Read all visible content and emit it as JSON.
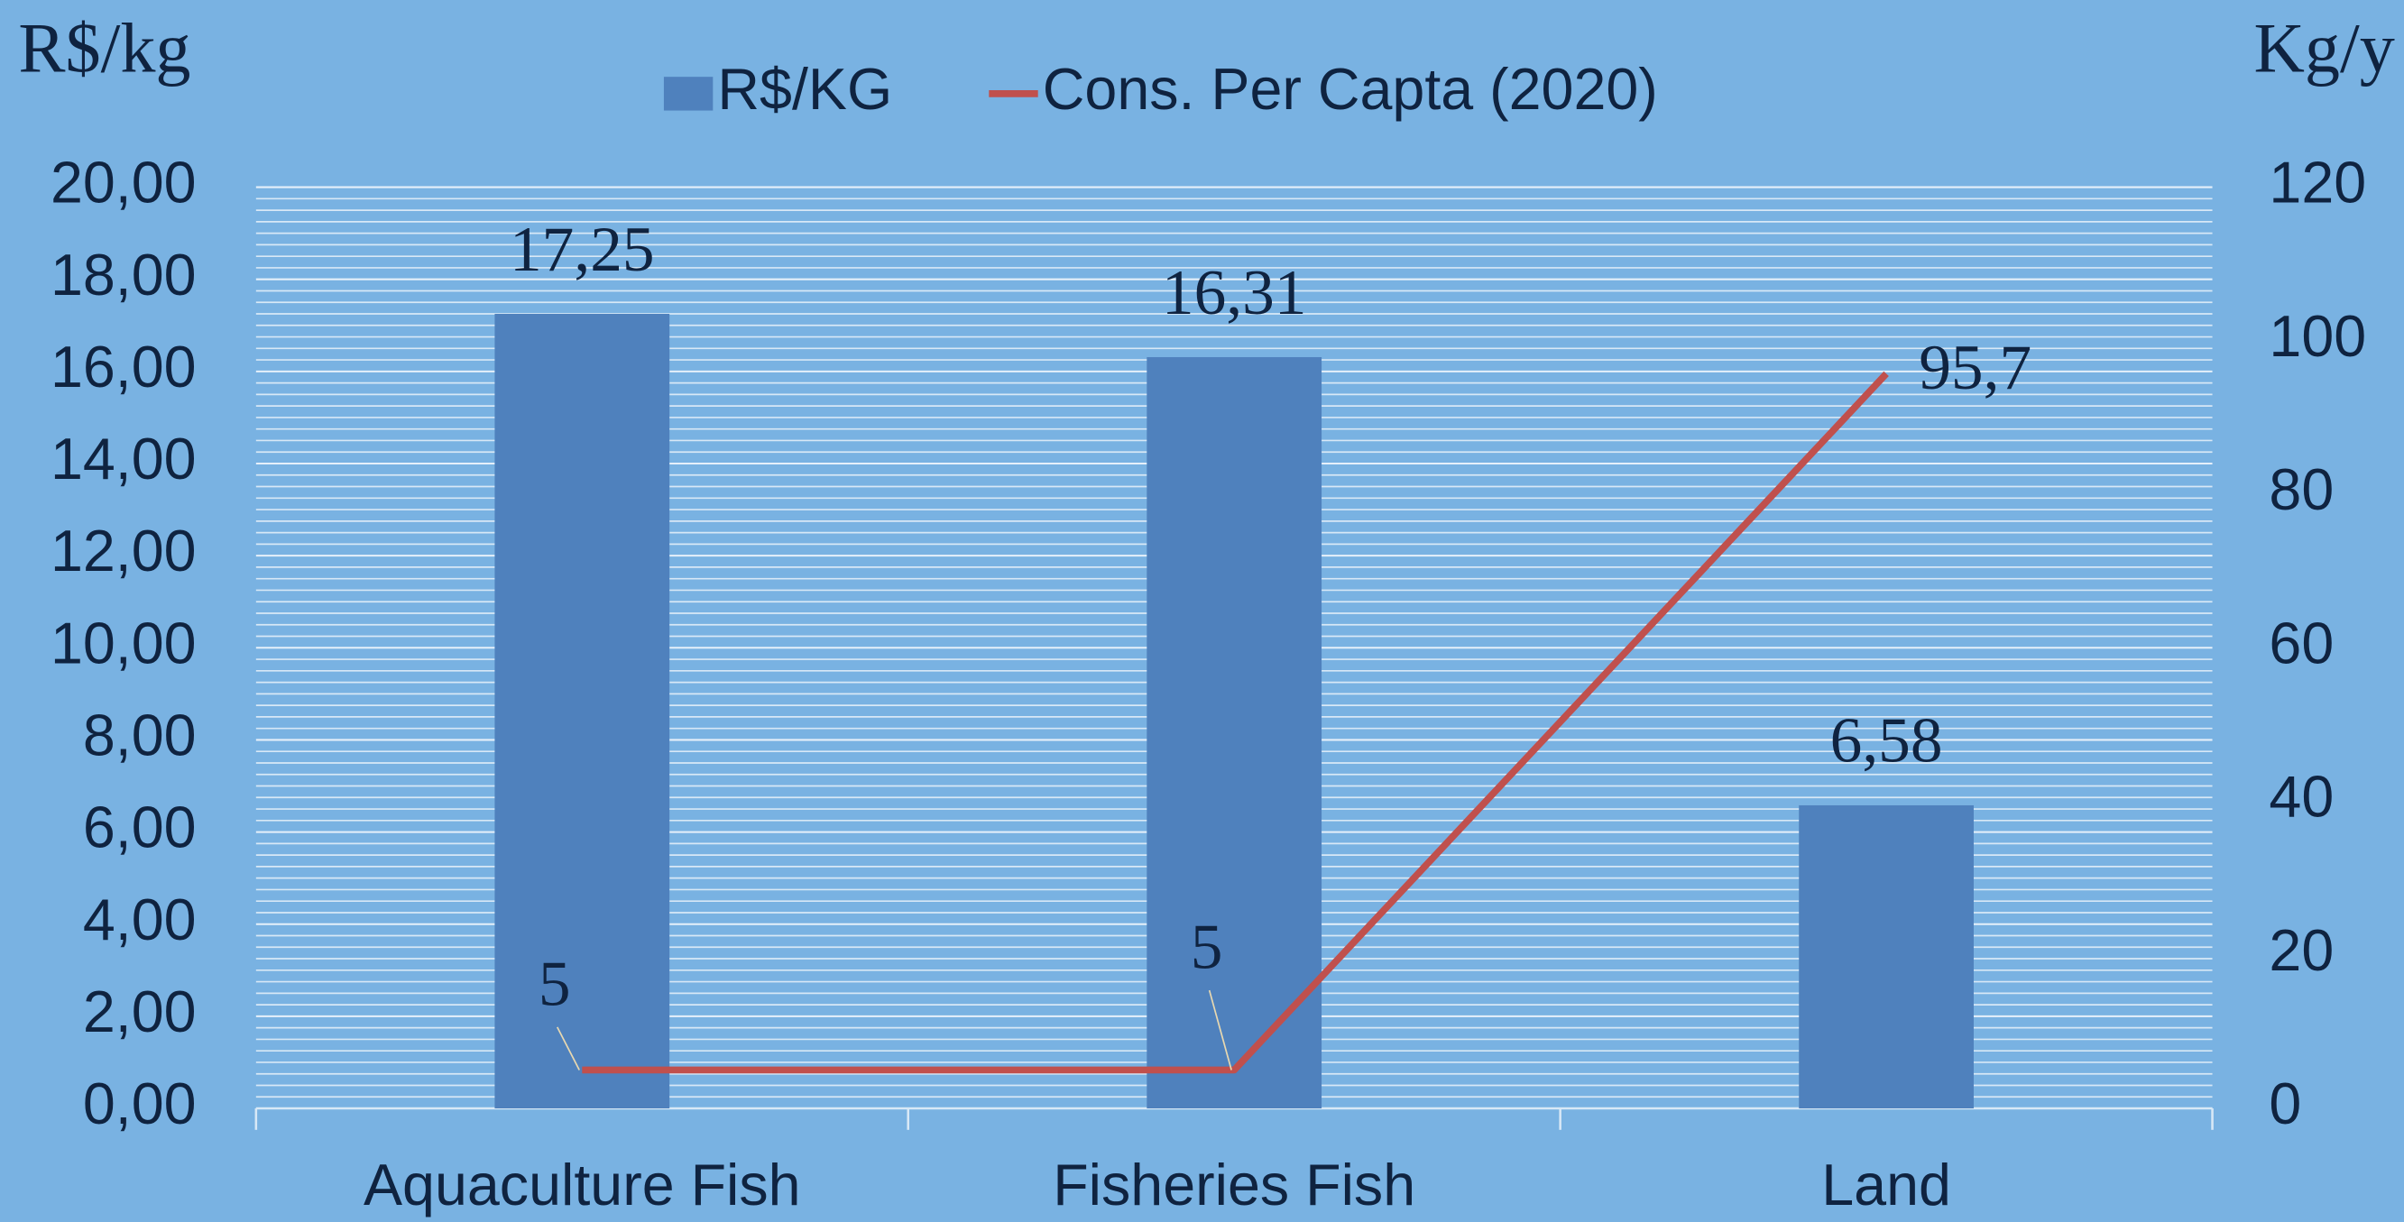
{
  "chart_data": {
    "type": "bar",
    "y_title": "R$/kg",
    "y2_title": "Kg/y",
    "categories": [
      "Aquaculture Fish",
      "Fisheries Fish",
      "Land"
    ],
    "series": [
      {
        "name": "R$/KG",
        "color": "#4f81bd",
        "values": [
          17.25,
          16.31,
          6.58
        ],
        "value_labels": [
          "17,25",
          "16,31",
          "6,58"
        ]
      },
      {
        "name": "Cons. Per Capta (2020)",
        "type": "line",
        "axis": "y2",
        "color": "#c0504d",
        "values": [
          5,
          5,
          95.7
        ],
        "value_labels": [
          "5",
          "5",
          "95,7"
        ]
      }
    ],
    "ylim": [
      0,
      20
    ],
    "yticks": [
      {
        "value": 0,
        "label": "0,00"
      },
      {
        "value": 2,
        "label": "2,00"
      },
      {
        "value": 4,
        "label": "4,00"
      },
      {
        "value": 6,
        "label": "6,00"
      },
      {
        "value": 8,
        "label": "8,00"
      },
      {
        "value": 10,
        "label": "10,00"
      },
      {
        "value": 12,
        "label": "12,00"
      },
      {
        "value": 14,
        "label": "14,00"
      },
      {
        "value": 16,
        "label": "16,00"
      },
      {
        "value": 18,
        "label": "18,00"
      },
      {
        "value": 20,
        "label": "20,00"
      }
    ],
    "y2lim": [
      0,
      120
    ],
    "y2ticks": [
      0,
      20,
      40,
      60,
      80,
      100,
      120
    ],
    "grid": true,
    "legend": "top"
  }
}
